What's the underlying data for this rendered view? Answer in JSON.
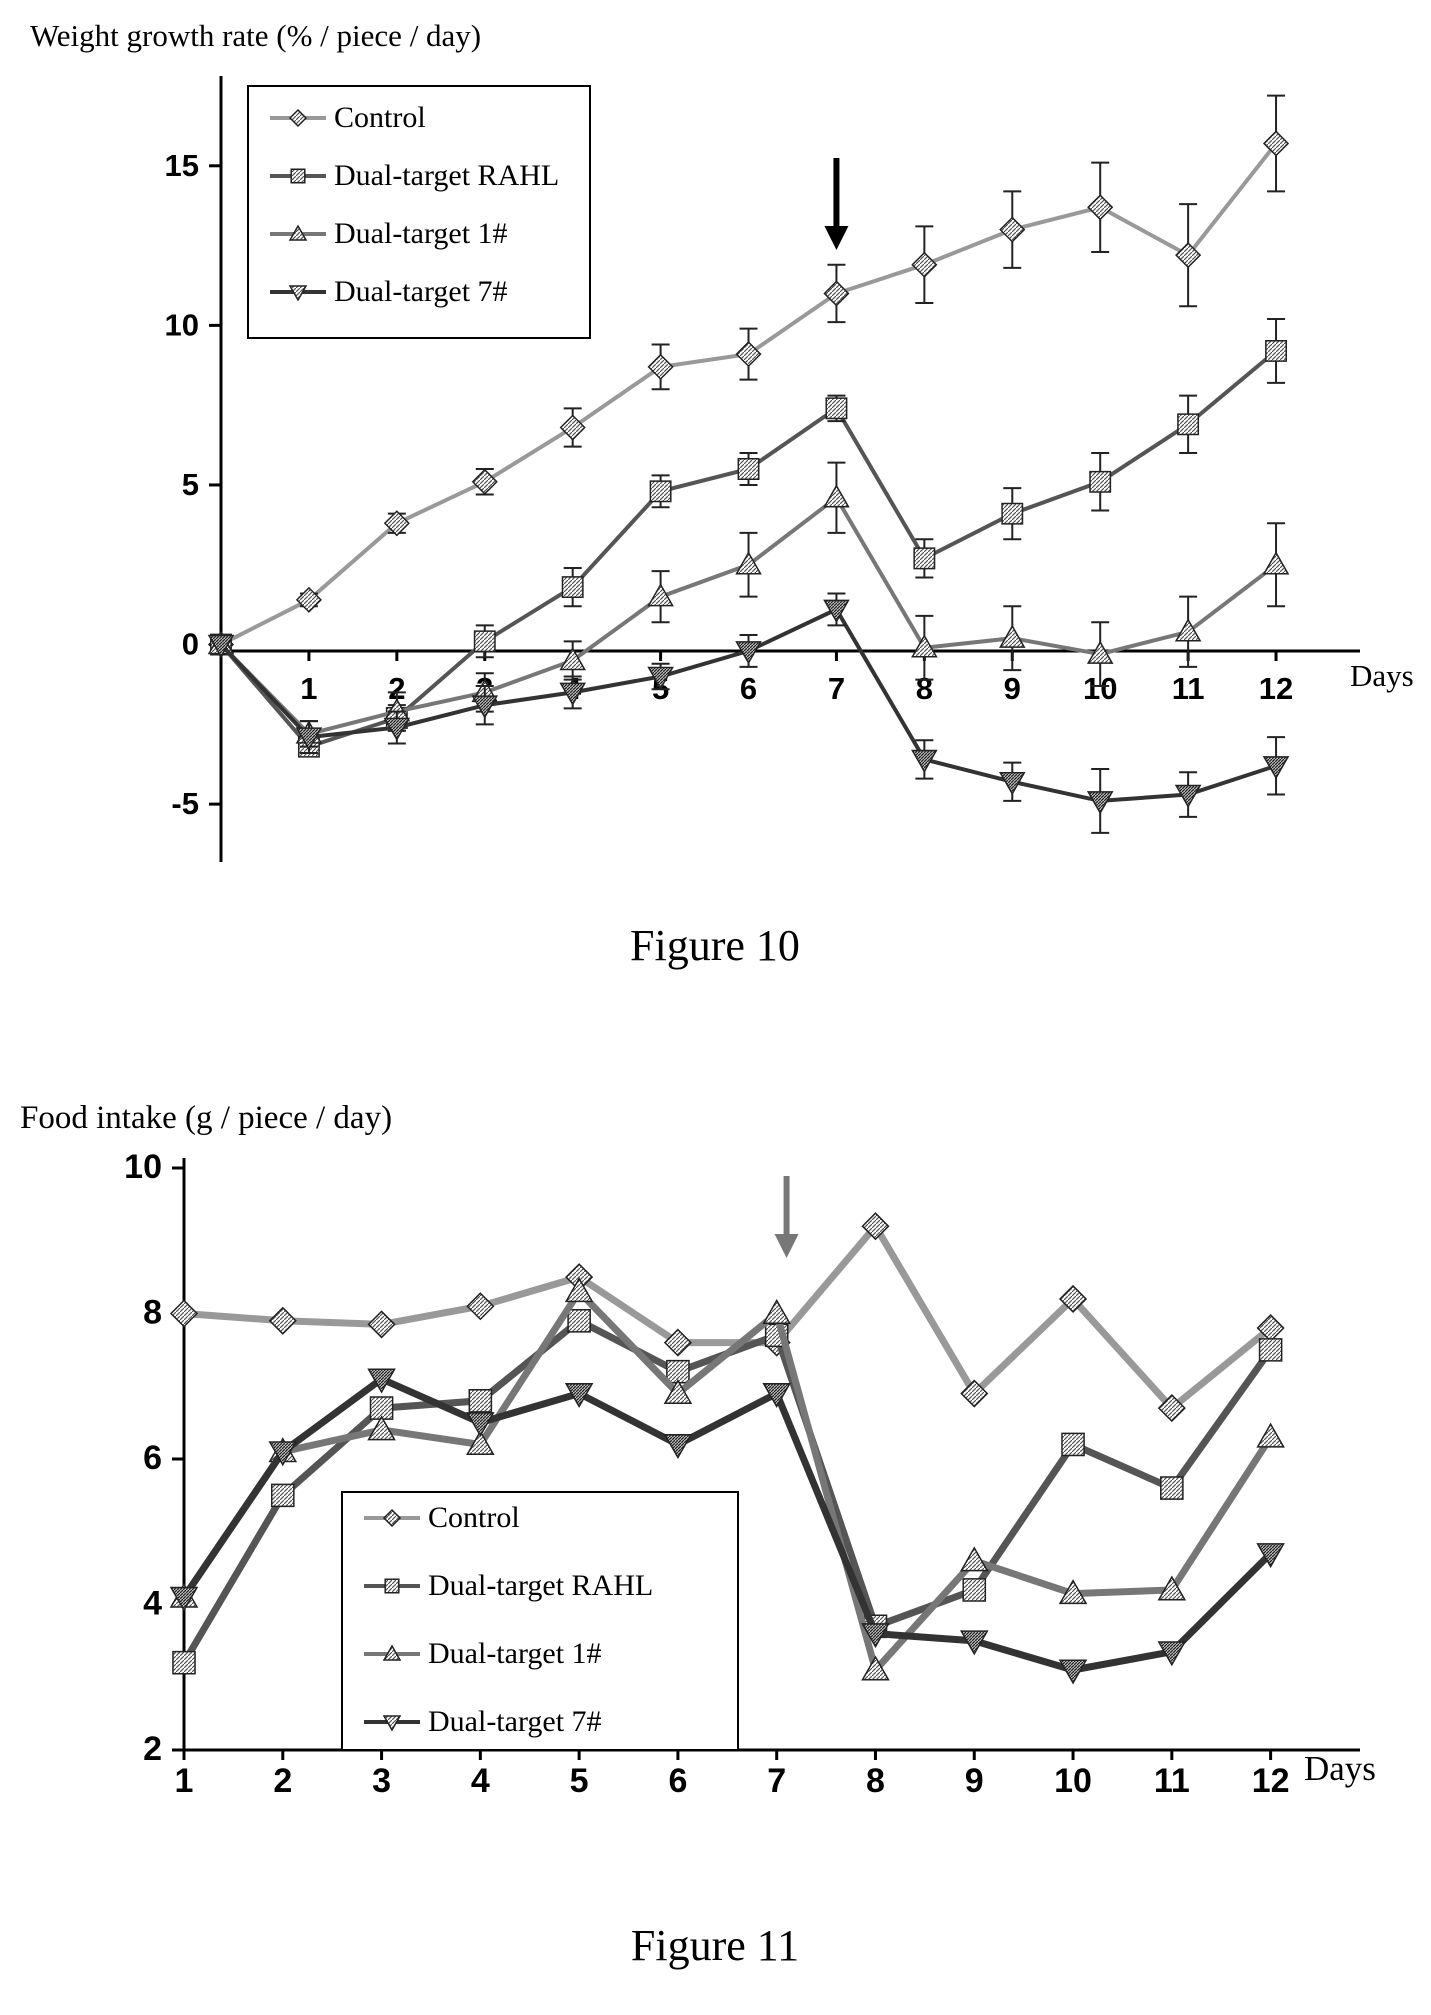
{
  "chart_data": [
    {
      "type": "line",
      "caption": "Figure 10",
      "title": "",
      "ylabel": "Weight growth rate (% / piece / day)",
      "xlabel": "Days",
      "x_ticks": [
        1,
        2,
        3,
        4,
        5,
        6,
        7,
        8,
        9,
        10,
        11,
        12
      ],
      "y_ticks": [
        -5,
        0,
        5,
        10,
        15
      ],
      "xlim": [
        0,
        12.5
      ],
      "ylim": [
        -6.5,
        17.5
      ],
      "arrow_x": 7,
      "legend_placement": "top-left",
      "error_bars": true,
      "series": [
        {
          "name": "Control",
          "marker": "diamond",
          "x": [
            0,
            1,
            2,
            3,
            4,
            5,
            6,
            7,
            8,
            9,
            10,
            11,
            12
          ],
          "values": [
            0,
            1.4,
            3.8,
            5.1,
            6.8,
            8.7,
            9.1,
            11.0,
            11.9,
            13.0,
            13.7,
            12.2,
            15.7
          ],
          "errors": [
            0,
            0.2,
            0.3,
            0.4,
            0.6,
            0.7,
            0.8,
            0.9,
            1.2,
            1.2,
            1.4,
            1.6,
            1.5
          ]
        },
        {
          "name": "Dual-target RAHL",
          "marker": "square",
          "x": [
            0,
            1,
            2,
            3,
            4,
            5,
            6,
            7,
            8,
            9,
            10,
            11,
            12
          ],
          "values": [
            0,
            -3.2,
            -2.3,
            0.1,
            1.8,
            4.8,
            5.5,
            7.4,
            2.7,
            4.1,
            5.1,
            6.9,
            9.2
          ],
          "errors": [
            0,
            0.3,
            0.4,
            0.5,
            0.6,
            0.5,
            0.5,
            0.4,
            0.6,
            0.8,
            0.9,
            0.9,
            1.0
          ]
        },
        {
          "name": "Dual-target 1#",
          "marker": "triangle-up",
          "x": [
            0,
            1,
            2,
            3,
            4,
            5,
            6,
            7,
            8,
            9,
            10,
            11,
            12
          ],
          "values": [
            0,
            -2.8,
            -2.1,
            -1.5,
            -0.5,
            1.5,
            2.5,
            4.6,
            -0.1,
            0.2,
            -0.3,
            0.4,
            2.5
          ],
          "errors": [
            0,
            0.4,
            0.6,
            0.6,
            0.6,
            0.8,
            1.0,
            1.1,
            1.0,
            1.0,
            1.0,
            1.1,
            1.3
          ]
        },
        {
          "name": "Dual-target 7#",
          "marker": "triangle-down",
          "x": [
            0,
            1,
            2,
            3,
            4,
            5,
            6,
            7,
            8,
            9,
            10,
            11,
            12
          ],
          "values": [
            0,
            -2.9,
            -2.6,
            -1.9,
            -1.5,
            -1.0,
            -0.2,
            1.1,
            -3.6,
            -4.3,
            -4.9,
            -4.7,
            -3.8
          ],
          "errors": [
            0,
            0.5,
            0.5,
            0.6,
            0.5,
            0.4,
            0.5,
            0.5,
            0.6,
            0.6,
            1.0,
            0.7,
            0.9
          ]
        }
      ]
    },
    {
      "type": "line",
      "caption": "Figure 11",
      "title": "",
      "ylabel": "Food intake (g / piece / day)",
      "xlabel": "Days",
      "x_ticks": [
        1,
        2,
        3,
        4,
        5,
        6,
        7,
        8,
        9,
        10,
        11,
        12
      ],
      "y_ticks": [
        2,
        4,
        6,
        8,
        10
      ],
      "xlim": [
        1,
        12.5
      ],
      "ylim": [
        2,
        10
      ],
      "arrow_x": 7.1,
      "legend_placement": "bottom-left",
      "error_bars": false,
      "series": [
        {
          "name": "Control",
          "marker": "diamond",
          "x": [
            1,
            2,
            3,
            4,
            5,
            6,
            7,
            8,
            9,
            10,
            11,
            12
          ],
          "values": [
            8.0,
            7.9,
            7.85,
            8.1,
            8.5,
            7.6,
            7.6,
            9.2,
            6.9,
            8.2,
            6.7,
            7.8
          ]
        },
        {
          "name": "Dual-target RAHL",
          "marker": "square",
          "x": [
            1,
            2,
            3,
            4,
            5,
            6,
            7,
            8,
            9,
            10,
            11,
            12
          ],
          "values": [
            3.2,
            5.5,
            6.7,
            6.8,
            7.9,
            7.2,
            7.7,
            3.7,
            4.2,
            6.2,
            5.6,
            7.5
          ]
        },
        {
          "name": "Dual-target 1#",
          "marker": "triangle-up",
          "x": [
            1,
            2,
            3,
            4,
            5,
            6,
            7,
            8,
            9,
            10,
            11,
            12
          ],
          "values": [
            4.1,
            6.1,
            6.4,
            6.2,
            8.3,
            6.9,
            8.0,
            3.1,
            4.6,
            4.15,
            4.2,
            6.3
          ]
        },
        {
          "name": "Dual-target 7#",
          "marker": "triangle-down",
          "x": [
            1,
            2,
            3,
            4,
            5,
            6,
            7,
            8,
            9,
            10,
            11,
            12
          ],
          "values": [
            4.1,
            6.1,
            7.1,
            6.5,
            6.9,
            6.2,
            6.9,
            3.6,
            3.5,
            3.1,
            3.35,
            4.7
          ]
        }
      ]
    }
  ]
}
